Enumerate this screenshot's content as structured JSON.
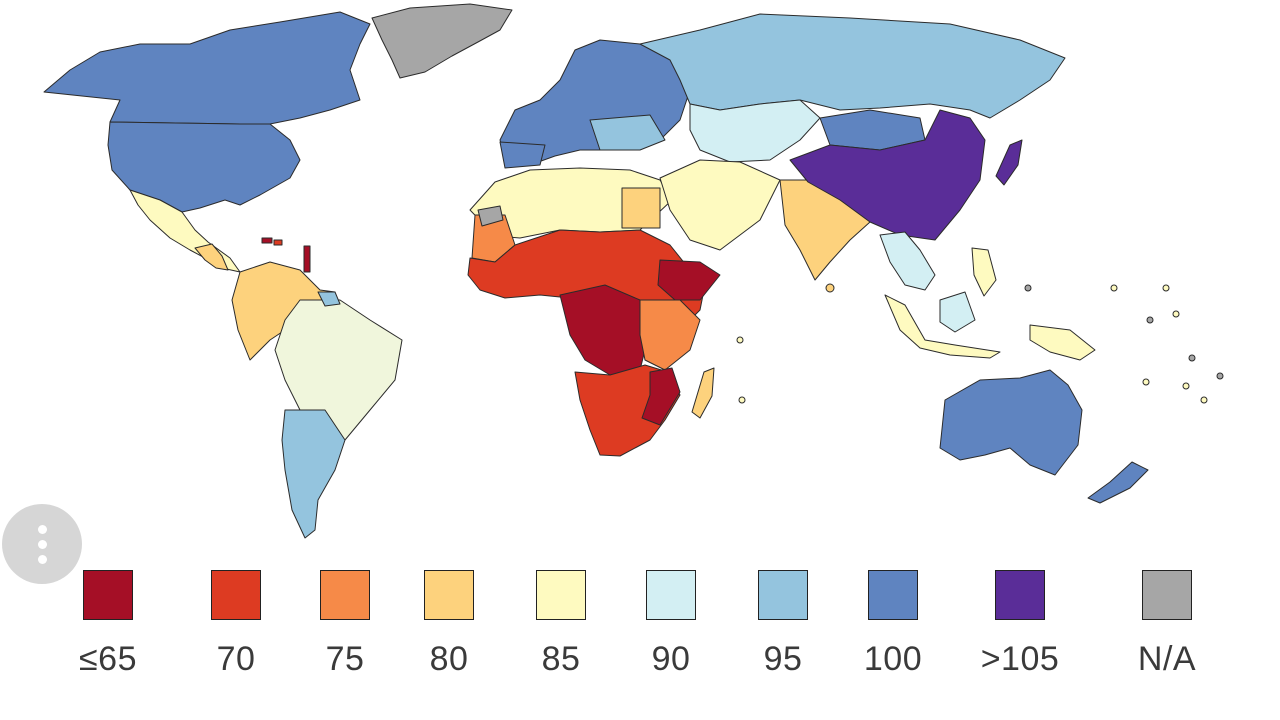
{
  "legend": {
    "items": [
      {
        "label": "≤65",
        "color": "#a50f26"
      },
      {
        "label": "70",
        "color": "#dd3b22"
      },
      {
        "label": "75",
        "color": "#f68a48"
      },
      {
        "label": "80",
        "color": "#fdd27d"
      },
      {
        "label": "85",
        "color": "#fefac0"
      },
      {
        "label": "90",
        "color": "#d3eff3"
      },
      {
        "label": "95",
        "color": "#94c4de"
      },
      {
        "label": "100",
        "color": "#5f84c0"
      },
      {
        "label": ">105",
        "color": "#5a2d98"
      },
      {
        "label": "N/A",
        "color": "#a6a6a6"
      }
    ]
  },
  "map_colors": {
    "ocean": "#ffffff",
    "border": "#2b2b2b"
  },
  "menu": {
    "icon": "more-vertical-icon"
  }
}
